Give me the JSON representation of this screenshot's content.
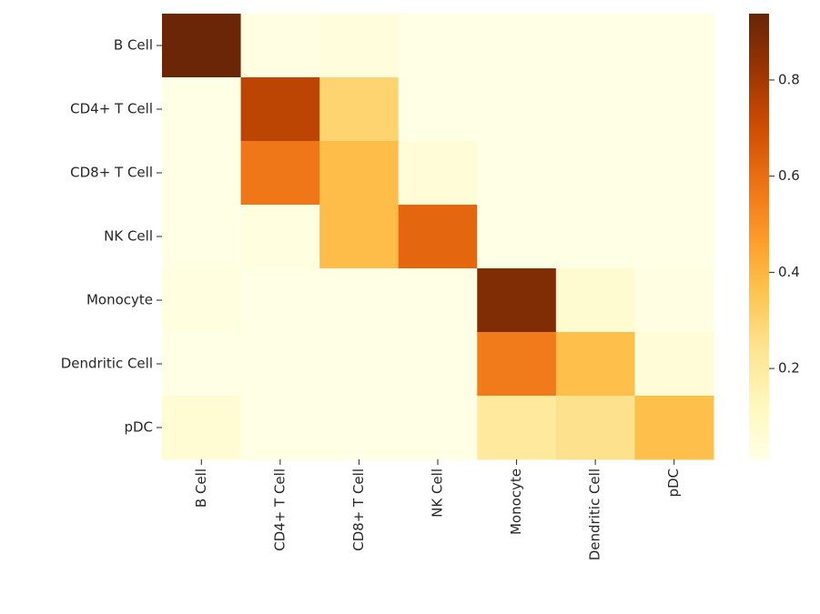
{
  "chart_data": {
    "type": "heatmap",
    "x_categories": [
      "B Cell",
      "CD4+ T Cell",
      "CD8+ T Cell",
      "NK Cell",
      "Monocyte",
      "Dendritic Cell",
      "pDC"
    ],
    "y_categories": [
      "B Cell",
      "CD4+ T Cell",
      "CD8+ T Cell",
      "NK Cell",
      "Monocyte",
      "Dendritic Cell",
      "pDC"
    ],
    "values": [
      [
        0.93,
        0.02,
        0.04,
        0.01,
        0.01,
        0.01,
        0.01
      ],
      [
        0.01,
        0.74,
        0.3,
        0.01,
        0.01,
        0.01,
        0.01
      ],
      [
        0.01,
        0.57,
        0.38,
        0.05,
        0.01,
        0.01,
        0.01
      ],
      [
        0.01,
        0.03,
        0.38,
        0.62,
        0.01,
        0.01,
        0.01
      ],
      [
        0.03,
        0.01,
        0.01,
        0.01,
        0.88,
        0.07,
        0.02
      ],
      [
        0.01,
        0.01,
        0.01,
        0.01,
        0.56,
        0.37,
        0.05
      ],
      [
        0.06,
        0.01,
        0.01,
        0.01,
        0.21,
        0.25,
        0.37
      ]
    ],
    "colormap": "YlOrBr",
    "clim": [
      0.011,
      0.938
    ],
    "colorbar_ticks": [
      0.2,
      0.4,
      0.6,
      0.8
    ]
  }
}
